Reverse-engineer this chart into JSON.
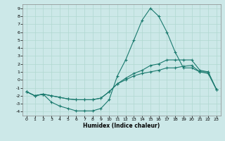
{
  "xlabel": "Humidex (Indice chaleur)",
  "bg_color": "#cce8e8",
  "line_color": "#1a7a6e",
  "grid_color": "#b0d8d0",
  "xlim": [
    -0.5,
    23.5
  ],
  "ylim": [
    -4.5,
    9.5
  ],
  "xticks": [
    0,
    1,
    2,
    3,
    4,
    5,
    6,
    7,
    8,
    9,
    10,
    11,
    12,
    13,
    14,
    15,
    16,
    17,
    18,
    19,
    20,
    21,
    22,
    23
  ],
  "yticks": [
    -4,
    -3,
    -2,
    -1,
    0,
    1,
    2,
    3,
    4,
    5,
    6,
    7,
    8,
    9
  ],
  "line1_x": [
    0,
    1,
    2,
    3,
    4,
    5,
    6,
    7,
    8,
    9,
    10,
    11,
    12,
    13,
    14,
    15,
    16,
    17,
    18,
    19,
    20,
    21,
    22,
    23
  ],
  "line1_y": [
    -1.5,
    -2.0,
    -1.8,
    -2.8,
    -3.3,
    -3.6,
    -3.9,
    -3.9,
    -3.9,
    -3.6,
    -2.5,
    0.5,
    2.5,
    5.0,
    7.5,
    9.0,
    8.0,
    6.0,
    3.5,
    1.5,
    1.5,
    1.0,
    0.8,
    -1.2
  ],
  "line2_x": [
    0,
    1,
    2,
    3,
    4,
    5,
    6,
    7,
    8,
    9,
    10,
    11,
    12,
    13,
    14,
    15,
    16,
    17,
    18,
    19,
    20,
    21,
    22,
    23
  ],
  "line2_y": [
    -1.5,
    -2.0,
    -1.8,
    -2.0,
    -2.2,
    -2.4,
    -2.5,
    -2.5,
    -2.5,
    -2.3,
    -1.5,
    -0.5,
    0.0,
    0.5,
    0.8,
    1.0,
    1.2,
    1.5,
    1.5,
    1.7,
    1.8,
    1.0,
    1.0,
    -1.2
  ],
  "line3_x": [
    0,
    1,
    2,
    3,
    4,
    5,
    6,
    7,
    8,
    9,
    10,
    11,
    12,
    13,
    14,
    15,
    16,
    17,
    18,
    19,
    20,
    21,
    22,
    23
  ],
  "line3_y": [
    -1.5,
    -2.0,
    -1.8,
    -2.0,
    -2.2,
    -2.4,
    -2.5,
    -2.5,
    -2.5,
    -2.3,
    -1.5,
    -0.5,
    0.2,
    0.8,
    1.2,
    1.8,
    2.0,
    2.5,
    2.5,
    2.5,
    2.5,
    1.2,
    1.0,
    -1.2
  ],
  "tick_fontsize": 4.5,
  "xlabel_fontsize": 5.5
}
